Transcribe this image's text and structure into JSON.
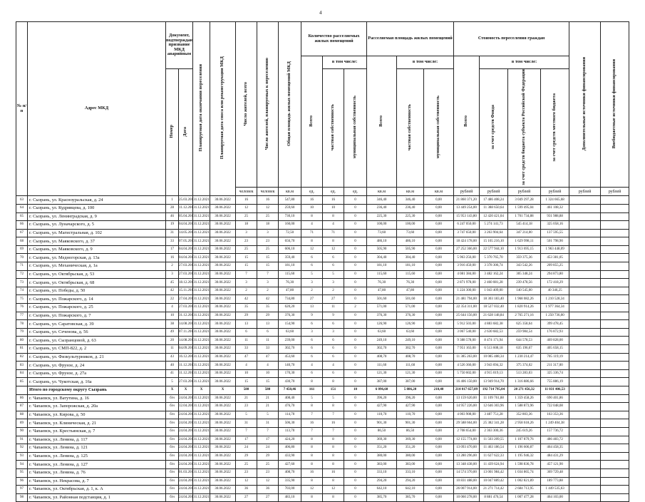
{
  "page_number": "4",
  "header": {
    "n": "№ п/п",
    "address": "Адрес МКД",
    "doc": "Документ, подтверждающий признание МКД аварийным",
    "doc_number": "Номер",
    "doc_date": "Дата",
    "end_date": "Планируемая дата окончания переселения",
    "demolition": "Планируемая дата сноса или реконструкции МКД",
    "residents": "Число жителей, всего",
    "residents_planned": "Число жителей, планируемых к переселению",
    "area": "Общая площадь жилых помещений МКД",
    "rooms": "Количество расселяемых жилых помещений",
    "area_group": "Расселяемая площадь жилых помещений",
    "cost": "Стоимость переселения граждан",
    "total": "Всего",
    "incl": "в том числе:",
    "private": "частная собственность",
    "municipal": "муниципальная собственность",
    "fund": "за счет средств Фонда",
    "regional": "за счет средств бюджета субъекта Российской Федерации",
    "local": "за счет средств местного бюджета",
    "additional": "Дополнительные источники финансирования",
    "extra": "Внебюджетные источники финансирования"
  },
  "units": [
    "человек",
    "человек",
    "кв.м",
    "ед.",
    "ед.",
    "ед.",
    "кв.м",
    "кв.м",
    "кв.м",
    "рублей",
    "рублей",
    "рублей",
    "рублей",
    "рублей",
    "рублей"
  ],
  "rows": [
    {
      "n": "63",
      "address": "г. Сызрань, ул. Красноуральская, д. 24",
      "values": [
        "1",
        "25.03.2013",
        "31.12.2021",
        "30.06.2022",
        "16",
        "16",
        "547,80",
        "16",
        "16",
        "0",
        "346,40",
        "346,40",
        "0,00",
        "21 860 371,20",
        "17 486 408,24",
        "3 049 297,28",
        "1 324 665,68"
      ]
    },
    {
      "n": "64",
      "address": "г. Сызрань, ул. Кудрявцева, д. 100",
      "values": [
        "28",
        "11.12.2014",
        "31.12.2021",
        "30.06.2022",
        "12",
        "12",
        "259,60",
        "10",
        "10",
        "0",
        "236,40",
        "236,40",
        "0,00",
        "13 449 254,00",
        "11 388 650,64",
        "1 599 495,04",
        "461 108,32"
      ]
    },
    {
      "n": "65",
      "address": "г. Сызрань, ул. Ленинградская, д. 9",
      "values": [
        "46",
        "05.04.2016",
        "31.12.2021",
        "30.06.2022",
        "25",
        "25",
        "730,10",
        "8",
        "8",
        "0",
        "225,30",
        "225,30",
        "0,00",
        "15 953 143,80",
        "12 420 421,04",
        "1 701 734,88",
        "931 988,88"
      ]
    },
    {
      "n": "66",
      "address": "г. Сызрань, ул. Луначарского, д. 5",
      "values": [
        "19",
        "04.04.2013",
        "31.12.2021",
        "30.06.2022",
        "18",
        "18",
        "160,00",
        "4",
        "4",
        "0",
        "100,00",
        "100,00",
        "0,00",
        "6 247 050,00",
        "5 274 141,73",
        "545 414,18",
        "325 058,16"
      ]
    },
    {
      "n": "67",
      "address": "г. Сызрань, ул. Магистральная, д. 102",
      "values": [
        "31",
        "14.05.2015",
        "31.12.2021",
        "30.06.2022",
        "3",
        "3",
        "72,50",
        "71",
        "71",
        "0",
        "73,60",
        "73,60",
        "0,00",
        "3 747 650,00",
        "3 263 904,64",
        "347 214,00",
        "137 595,55"
      ]
    },
    {
      "n": "68",
      "address": "г. Сызрань, ул. Маяковского, д. 37",
      "values": [
        "33",
        "07.05.2015",
        "31.12.2021",
        "30.06.2022",
        "23",
        "23",
        "656,70",
        "8",
        "8",
        "0",
        "486,10",
        "486,10",
        "0,00",
        "18 424 178,00",
        "15 165 216,10",
        "1 629 998,11",
        "501 798,90"
      ]
    },
    {
      "n": "69",
      "address": "г. Сызрань, ул. Маяковского, д. 9",
      "values": [
        "17",
        "04.04.2013",
        "31.12.2021",
        "30.06.2022",
        "25",
        "25",
        "606,10",
        "12",
        "12",
        "0",
        "505,90",
        "505,90",
        "0,00",
        "27 252 366,00",
        "22 577 944,10",
        "1 913 695,15",
        "1 963 448,09"
      ]
    },
    {
      "n": "70",
      "address": "г. Сызрань, ул. Медногорская, д. 13а",
      "values": [
        "16",
        "04.04.2013",
        "31.12.2021",
        "30.06.2022",
        "15",
        "15",
        "359,40",
        "6",
        "6",
        "0",
        "304,40",
        "304,40",
        "0,00",
        "5 963 256,00",
        "5 370 765,70",
        "359 375,36",
        "453 381,05"
      ]
    },
    {
      "n": "71",
      "address": "г. Сызрань, ул. Механическая, д. 1а",
      "values": [
        "2",
        "27.03.2013",
        "31.12.2021",
        "30.06.2022",
        "15",
        "15",
        "181,10",
        "6",
        "6",
        "0",
        "181,10",
        "181,10",
        "0,00",
        "3 916 450,00",
        "3 378 306,74",
        "343 542,26",
        "209 855,25"
      ]
    },
    {
      "n": "72",
      "address": "г. Сызрань, ул. Октябрьская, д. 53",
      "values": [
        "3",
        "27.03.2013",
        "31.12.2021",
        "30.06.2022",
        "7",
        "7",
        "115,60",
        "5",
        "5",
        "0",
        "115,60",
        "115,60",
        "0,00",
        "4 081 384,00",
        "3 482 162,24",
        "305 348,24",
        "294 873,80"
      ]
    },
    {
      "n": "73",
      "address": "г. Сызрань, ул. Октябрьская, д. 68",
      "values": [
        "45",
        "18.12.2015",
        "31.12.2021",
        "30.06.2022",
        "3",
        "3",
        "76,30",
        "3",
        "3",
        "0",
        "76,30",
        "76,30",
        "0,00",
        "2 871 978,00",
        "2 460 081,28",
        "239 478,56",
        "172 418,29"
      ]
    },
    {
      "n": "74",
      "address": "г. Сызрань, ул. Победы, д. 50",
      "values": [
        "42",
        "15.11.2015",
        "31.12.2021",
        "30.06.2022",
        "2",
        "2",
        "47,80",
        "2",
        "2",
        "0",
        "47,80",
        "47,80",
        "0,00",
        "1 224 300,00",
        "1 043 409,00",
        "140 545,00",
        "40 346,25"
      ]
    },
    {
      "n": "75",
      "address": "г. Сызрань, ул. Пожарского, д. 14",
      "values": [
        "22",
        "27.04.2013",
        "31.12.2021",
        "30.06.2022",
        "42",
        "42",
        "734,80",
        "27",
        "27",
        "0",
        "501,60",
        "501,60",
        "0,00",
        "21 481 794,00",
        "18 303 183,40",
        "1 968 082,26",
        "1 210 528,34"
      ]
    },
    {
      "n": "76",
      "address": "г. Сызрань, ул. Пожарского, д. 25",
      "values": [
        "4",
        "27.03.2013",
        "31.12.2021",
        "30.06.2022",
        "35",
        "35",
        "620,20",
        "13",
        "11",
        "2",
        "571,00",
        "571,00",
        "0,00",
        "22 354 311,00",
        "18 527 032,40",
        "1 820 914,26",
        "1 977 364,34"
      ]
    },
    {
      "n": "77",
      "address": "г. Сызрань, ул. Пожарского, д. 7",
      "values": [
        "10",
        "31.12.2013",
        "31.12.2021",
        "30.06.2022",
        "29",
        "29",
        "376,30",
        "9",
        "9",
        "0",
        "376,30",
        "376,30",
        "0,00",
        "25 644 156,00",
        "21 628 148,84",
        "2 765 271,16",
        "1 250 736,00"
      ]
    },
    {
      "n": "78",
      "address": "г. Сызрань, ул. Саратовская, д. 39",
      "values": [
        "38",
        "14.08.2015",
        "31.12.2021",
        "30.06.2022",
        "13",
        "13",
        "154,90",
        "6",
        "6",
        "0",
        "126,90",
        "126,90",
        "0,00",
        "5 912 503,00",
        "4 883 682,38",
        "625 358,64",
        "399 478,45"
      ]
    },
    {
      "n": "79",
      "address": "г. Сызрань, ул. Сеченова, д. 56",
      "values": [
        "49",
        "07.11.2016",
        "31.12.2021",
        "30.06.2022",
        "6",
        "6",
        "63,60",
        "3",
        "3",
        "0",
        "63,60",
        "63,60",
        "0,00",
        "3 067 540,00",
        "2 630 682,53",
        "259 984,54",
        "176 872,93"
      ]
    },
    {
      "n": "80",
      "address": "г. Сызрань, ул. Сызранцовой, д. 63",
      "values": [
        "20",
        "14.08.2013",
        "31.12.2021",
        "30.06.2022",
        "11",
        "11",
        "239,00",
        "6",
        "6",
        "0",
        "249,10",
        "249,10",
        "0,00",
        "9 388 578,00",
        "8 474 171,94",
        "644 578,53",
        "469 828,00"
      ]
    },
    {
      "n": "81",
      "address": "г. Сызрань, ул. СМП-822, д. 2",
      "values": [
        "11",
        "04.09.2013",
        "31.12.2021",
        "30.06.2022",
        "33",
        "33",
        "302,70",
        "6",
        "6",
        "0",
        "302,70",
        "302,70",
        "0,00",
        "7 951 163,00",
        "6 513 608,18",
        "635 196,67",
        "405 658,15"
      ]
    },
    {
      "n": "82",
      "address": "г. Сызрань, ул. Физкультурников, д. 21",
      "values": [
        "43",
        "16.12.2015",
        "31.12.2021",
        "30.06.2022",
        "47",
        "47",
        "453,60",
        "6",
        "6",
        "0",
        "408,70",
        "408,70",
        "0,00",
        "11 385 263,00",
        "10 085 488,34",
        "1 230 214,47",
        "705 119,19"
      ]
    },
    {
      "n": "83",
      "address": "г. Сызрань, ул. Фрунзе, д. 24",
      "values": [
        "40",
        "11.12.2015",
        "31.12.2021",
        "30.06.2022",
        "4",
        "4",
        "140,70",
        "4",
        "4",
        "0",
        "111,60",
        "111,60",
        "0,00",
        "4 526 366,00",
        "3 943 694,32",
        "375 374,02",
        "211 317,00"
      ]
    },
    {
      "n": "84",
      "address": "г. Сызрань, ул. Фрунзе, д. 27а",
      "values": [
        "41",
        "11.12.2015",
        "31.12.2021",
        "30.06.2022",
        "10",
        "10",
        "170,30",
        "6",
        "6",
        "0",
        "121,30",
        "121,30",
        "0,00",
        "5 750 602,00",
        "4 915 019,13",
        "513 283,03",
        "325 336,74"
      ]
    },
    {
      "n": "85",
      "address": "г. Сызрань, ул. Чукотская, д. 16а",
      "values": [
        "5",
        "27.03.2013",
        "31.12.2021",
        "30.06.2022",
        "15",
        "15",
        "430,70",
        "8",
        "8",
        "0",
        "387,00",
        "387,00",
        "0,00",
        "16 406 150,00",
        "13 949 914,70",
        "1 316 886,66",
        "755 886,19"
      ]
    },
    {
      "address": "Итого по городскому округу Сызрань",
      "values": [
        "X",
        "X",
        "X",
        "X",
        "580",
        "580",
        "7 450,46",
        "161",
        "151",
        "10",
        "6 096,60",
        "5 886,20",
        "210,40",
        "214 017 657,89",
        "192 714 795,04",
        "20 271 456,32",
        "11 031 406,53"
      ]
    },
    {
      "n": "86",
      "address": "г. Чапаевск, ул. Ватутина, д. 16",
      "values": [
        "б/н",
        "24.04.2015",
        "31.12.2021",
        "30.06.2022",
        "21",
        "21",
        "408,40",
        "5",
        "5",
        "0",
        "396,20",
        "396,20",
        "0,00",
        "13 159 620,00",
        "11 109 761,88",
        "1 359 458,26",
        "690 401,86"
      ]
    },
    {
      "n": "87",
      "address": "г. Чапаевск, ул. Запорожская, д. 20а",
      "values": [
        "б/н",
        "12.04.2013",
        "31.12.2021",
        "30.06.2022",
        "23",
        "21",
        "476,70",
        "8",
        "8",
        "0",
        "427,90",
        "427,90",
        "0,00",
        "14 957 226,00",
        "12 646 303,96",
        "1 588 873,96",
        "722 048,08"
      ]
    },
    {
      "n": "88",
      "address": "г. Чапаевск, ул. Кирова, д. 50",
      "values": [
        "б/н",
        "24.04.2015",
        "31.12.2021",
        "30.06.2022",
        "5",
        "5",
        "114,70",
        "7",
        "7",
        "0",
        "110,70",
        "110,70",
        "0,00",
        "4 003 908,00",
        "3 487 751,28",
        "352 803,36",
        "163 353,36"
      ]
    },
    {
      "n": "89",
      "address": "г. Чапаевск, ул. Клиническая, д. 21",
      "values": [
        "б/н",
        "24.04.2013",
        "31.12.2021",
        "30.06.2022",
        "31",
        "31",
        "506,30",
        "16",
        "16",
        "0",
        "901,30",
        "901,30",
        "0,00",
        "29 588 664,00",
        "25 382 341,28",
        "2 958 618,26",
        "1 249 404,38"
      ]
    },
    {
      "n": "90",
      "address": "г. Чапаевск, ул. Крестьянская, д. 7",
      "values": [
        "б/н",
        "24.04.2013",
        "31.12.2021",
        "30.06.2022",
        "7",
        "7",
        "113,70",
        "7",
        "7",
        "0",
        "86,50",
        "86,50",
        "0,00",
        "2 708 654,00",
        "2 363 300,36",
        "245 619,26",
        "157 736,72"
      ]
    },
    {
      "n": "91",
      "address": "г. Чапаевск, ул. Ленина, д. 117",
      "values": [
        "б/н",
        "24.04.2013",
        "31.12.2021",
        "30.06.2022",
        "17",
        "17",
        "424,20",
        "8",
        "8",
        "0",
        "369,30",
        "369,30",
        "0,00",
        "12 155 774,00",
        "11 503 209,55",
        "1 107 879,76",
        "486 483,72"
      ]
    },
    {
      "n": "92",
      "address": "г. Чапаевск, ул. Ленина, д. 121",
      "values": [
        "б/н",
        "24.04.2015",
        "31.12.2021",
        "30.06.2022",
        "24",
        "24",
        "406,80",
        "8",
        "8",
        "0",
        "351,20",
        "351,20",
        "0,00",
        "13 093 470,00",
        "11 463 186,54",
        "1 196 606,87",
        "464 458,35"
      ]
    },
    {
      "n": "93",
      "address": "г. Чапаевск, ул. Ленина, д. 125",
      "values": [
        "б/н",
        "24.04.2013",
        "31.12.2021",
        "30.06.2022",
        "29",
        "29",
        "433,90",
        "8",
        "8",
        "0",
        "380,00",
        "380,00",
        "0,00",
        "13 280 296,00",
        "11 627 622,33",
        "1 195 946,32",
        "484 431,29"
      ]
    },
    {
      "n": "94",
      "address": "г. Чапаевск, ул. Ленина, д. 127",
      "values": [
        "б/н",
        "24.04.2013",
        "31.12.2021",
        "30.06.2022",
        "25",
        "25",
        "427,60",
        "8",
        "8",
        "0",
        "383,00",
        "383,00",
        "0,00",
        "13 348 438,00",
        "11 439 624,94",
        "1 598 836,78",
        "457 121,90"
      ]
    },
    {
      "n": "95",
      "address": "г. Чапаевск, ул. Ленина, д. 76",
      "values": [
        "б/н",
        "01.03.2013",
        "31.12.2021",
        "30.06.2022",
        "23",
        "23",
        "408,70",
        "16",
        "16",
        "0",
        "333,10",
        "333,10",
        "0,00",
        "14 574 370,00",
        "13 001 984,42",
        "1 034 865,74",
        "369 729,48"
      ]
    },
    {
      "n": "96",
      "address": "г. Чапаевск, ул. Некрасова, д. 7",
      "values": [
        "б/н",
        "24.04.2013",
        "31.12.2021",
        "30.06.2022",
        "12",
        "12",
        "335,90",
        "8",
        "8",
        "0",
        "294,20",
        "294,20",
        "0,00",
        "10 831 488,00",
        "10 047 889,42",
        "1 002 821,89",
        "189 773,88"
      ]
    },
    {
      "n": "97",
      "address": "г. Чапаевск, ул. Октябрьская, д. 1, к. А",
      "values": [
        "б/н",
        "24.04.2015",
        "31.12.2021",
        "30.06.2022",
        "36",
        "36",
        "703,00",
        "12",
        "12",
        "0",
        "642,10",
        "642,10",
        "0,00",
        "26 007 914,00",
        "21 271 714,42",
        "2 684 713,95",
        "1 449 535,63"
      ]
    },
    {
      "n": "98",
      "address": "г. Чапаевск, ул. Районная подстанция, д. 1",
      "values": [
        "б/н",
        "24.04.2013",
        "31.12.2021",
        "30.06.2022",
        "27",
        "27",
        "483,10",
        "8",
        "8",
        "0",
        "385,70",
        "385,70",
        "0,00",
        "10 060 278,00",
        "8 881 476,54",
        "1 007 477,28",
        "464 103,00"
      ]
    }
  ]
}
